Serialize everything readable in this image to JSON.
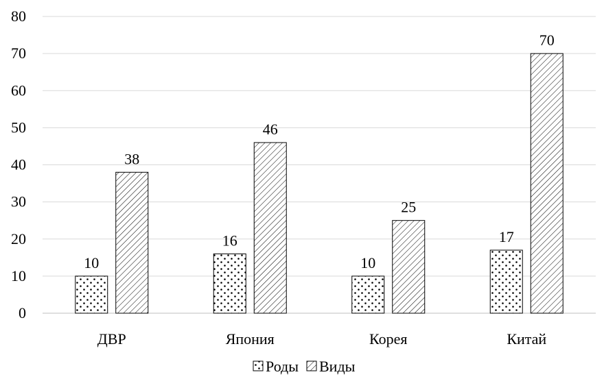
{
  "chart_data": {
    "type": "bar",
    "title": "",
    "xlabel": "",
    "ylabel": "",
    "categories": [
      "ДВР",
      "Япония",
      "Корея",
      "Китай"
    ],
    "series": [
      {
        "name": "Роды",
        "values": [
          10,
          16,
          10,
          17
        ],
        "pattern": "dots"
      },
      {
        "name": "Виды",
        "values": [
          38,
          46,
          25,
          70
        ],
        "pattern": "hatch"
      }
    ],
    "ylim": [
      0,
      80
    ],
    "yticks": [
      0,
      10,
      20,
      30,
      40,
      50,
      60,
      70,
      80
    ],
    "grid": true,
    "legend": "bottom",
    "colors": {
      "bar_fill": "#ffffff",
      "bar_stroke": "#000000",
      "grid": "#d9d9d9",
      "axis": "#bfbfbf"
    }
  }
}
